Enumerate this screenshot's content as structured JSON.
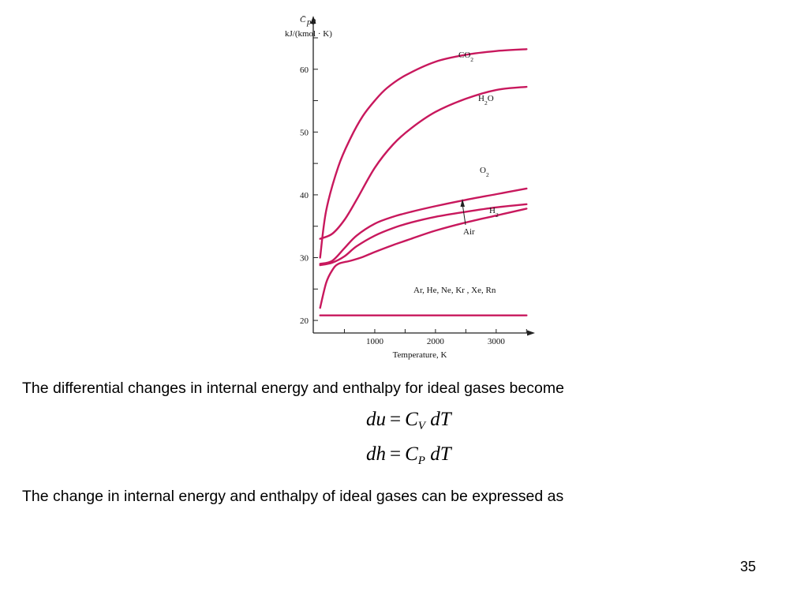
{
  "chart_data": {
    "type": "line",
    "ylabel_symbol": "C̄",
    "ylabel_subscript": "p0",
    "ylabel_units": "kJ/(kmol · K)",
    "xlabel": "Temperature, K",
    "xlim": [
      0,
      3600
    ],
    "ylim": [
      18,
      66
    ],
    "xticks": [
      1000,
      2000,
      3000
    ],
    "yticks": [
      20,
      30,
      40,
      50,
      60
    ],
    "grid": false,
    "color": "#c8185d",
    "series": [
      {
        "name": "CO",
        "name_sub": "2",
        "x": [
          100,
          200,
          400,
          600,
          800,
          1000,
          1200,
          1500,
          2000,
          2500,
          3000,
          3500
        ],
        "y": [
          30,
          37.5,
          44.5,
          49,
          52.5,
          55,
          57,
          59,
          61.2,
          62.3,
          62.9,
          63.2
        ]
      },
      {
        "name": "H",
        "name_sub": "2",
        "name_suffix": "O",
        "x": [
          100,
          300,
          500,
          700,
          1000,
          1300,
          1600,
          2000,
          2500,
          3000,
          3500
        ],
        "y": [
          33,
          33.8,
          36,
          39.2,
          44.3,
          48,
          50.6,
          53.2,
          55.3,
          56.7,
          57.2
        ]
      },
      {
        "name": "O",
        "name_sub": "2",
        "x": [
          100,
          300,
          500,
          700,
          1000,
          1300,
          1600,
          2000,
          2500,
          3000,
          3500
        ],
        "y": [
          29,
          29.5,
          31.5,
          33.5,
          35.4,
          36.5,
          37.3,
          38.2,
          39.2,
          40.1,
          41
        ]
      },
      {
        "name": "Air",
        "x": [
          100,
          300,
          500,
          700,
          1000,
          1300,
          1600,
          2000,
          2500,
          3000,
          3500
        ],
        "y": [
          28.8,
          29.2,
          30.2,
          31.8,
          33.5,
          34.7,
          35.6,
          36.5,
          37.3,
          38,
          38.5
        ]
      },
      {
        "name": "H",
        "name_sub": "2",
        "x": [
          100,
          200,
          300,
          400,
          600,
          800,
          1000,
          1300,
          1600,
          2000,
          2500,
          3000,
          3500
        ],
        "y": [
          22,
          26,
          28,
          29,
          29.5,
          30.1,
          30.9,
          32,
          33,
          34.3,
          35.6,
          36.7,
          37.8
        ]
      },
      {
        "name": "Ar, He, Ne, Kr , Xe, Rn",
        "x": [
          100,
          3500
        ],
        "y": [
          20.8,
          20.8
        ]
      }
    ]
  },
  "text": {
    "line1": "The differential changes in internal energy and enthalpy for ideal gases become",
    "line2": "The change in internal energy and enthalpy of ideal gases can be expressed as",
    "page_number": "35"
  },
  "equations": [
    {
      "lhs": "du",
      "op": "=",
      "c": "C",
      "sub": "V",
      "rhs": "dT"
    },
    {
      "lhs": "dh",
      "op": "=",
      "c": "C",
      "sub": "P",
      "rhs": "dT"
    }
  ]
}
